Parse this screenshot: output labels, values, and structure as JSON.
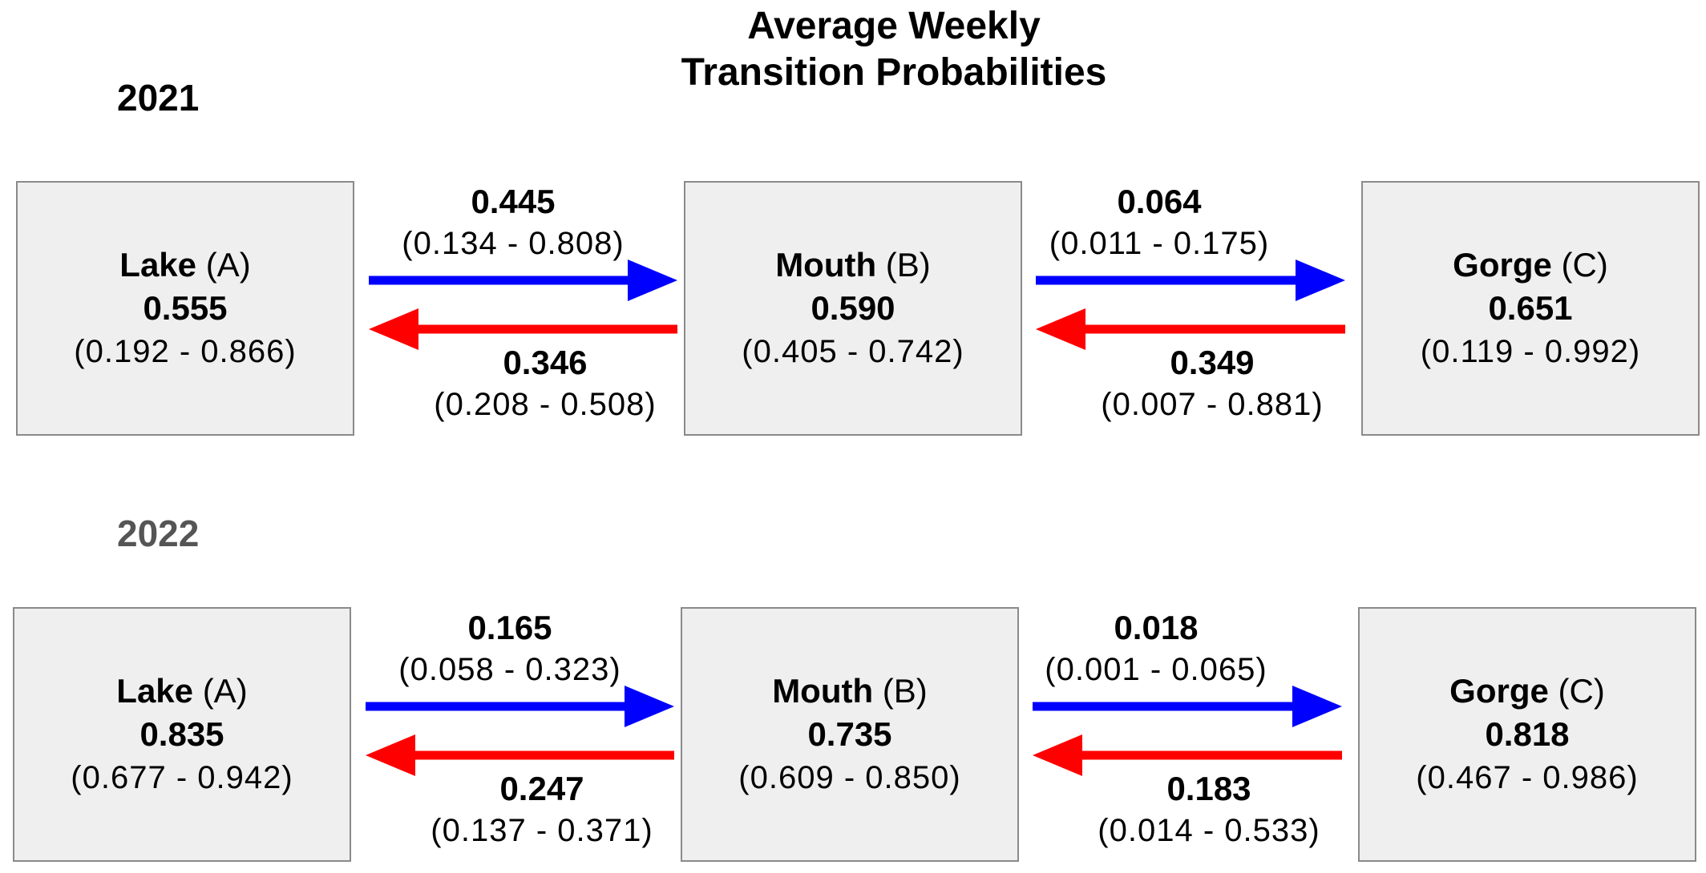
{
  "title": {
    "line1": "Average Weekly",
    "line2": "Transition Probabilities"
  },
  "panels": [
    {
      "year": "2021",
      "year_color": "#000000",
      "nodes": [
        {
          "name_bold": "Lake",
          "name_rest": " (A)",
          "value": "0.555",
          "ci": "(0.192 - 0.866)"
        },
        {
          "name_bold": "Mouth",
          "name_rest": " (B)",
          "value": "0.590",
          "ci": "(0.405 - 0.742)"
        },
        {
          "name_bold": "Gorge",
          "name_rest": " (C)",
          "value": "0.651",
          "ci": "(0.119 - 0.992)"
        }
      ],
      "transitions": [
        {
          "from": "A",
          "to": "B",
          "direction": "forward",
          "color": "#0000ff",
          "value": "0.445",
          "ci": "(0.134 - 0.808)"
        },
        {
          "from": "B",
          "to": "A",
          "direction": "backward",
          "color": "#ff0000",
          "value": "0.346",
          "ci": "(0.208 - 0.508)"
        },
        {
          "from": "B",
          "to": "C",
          "direction": "forward",
          "color": "#0000ff",
          "value": "0.064",
          "ci": "(0.011 - 0.175)"
        },
        {
          "from": "C",
          "to": "B",
          "direction": "backward",
          "color": "#ff0000",
          "value": "0.349",
          "ci": "(0.007 - 0.881)"
        }
      ]
    },
    {
      "year": "2022",
      "year_color": "#555555",
      "nodes": [
        {
          "name_bold": "Lake",
          "name_rest": " (A)",
          "value": "0.835",
          "ci": "(0.677 - 0.942)"
        },
        {
          "name_bold": "Mouth",
          "name_rest": " (B)",
          "value": "0.735",
          "ci": "(0.609 - 0.850)"
        },
        {
          "name_bold": "Gorge",
          "name_rest": " (C)",
          "value": "0.818",
          "ci": "(0.467 - 0.986)"
        }
      ],
      "transitions": [
        {
          "from": "A",
          "to": "B",
          "direction": "forward",
          "color": "#0000ff",
          "value": "0.165",
          "ci": "(0.058 - 0.323)"
        },
        {
          "from": "B",
          "to": "A",
          "direction": "backward",
          "color": "#ff0000",
          "value": "0.247",
          "ci": "(0.137 - 0.371)"
        },
        {
          "from": "B",
          "to": "C",
          "direction": "forward",
          "color": "#0000ff",
          "value": "0.018",
          "ci": "(0.001 - 0.065)"
        },
        {
          "from": "C",
          "to": "B",
          "direction": "backward",
          "color": "#ff0000",
          "value": "0.183",
          "ci": "(0.014 - 0.533)"
        }
      ]
    }
  ]
}
